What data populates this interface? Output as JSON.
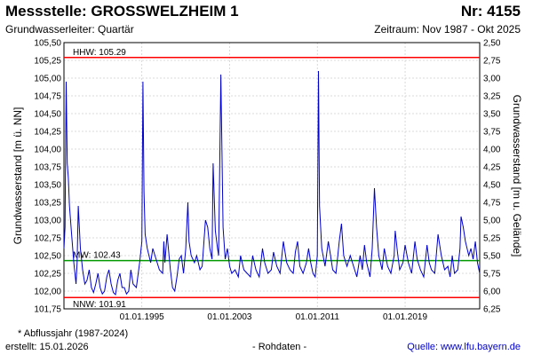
{
  "header": {
    "title": "Messstelle: GROSSWELZHEIM 1",
    "number": "Nr: 4155",
    "aquifer": "Grundwasserleiter: Quartär",
    "period": "Zeitraum: Nov 1987 - Okt 2025"
  },
  "footer": {
    "footnote": "* Abflussjahr (1987-2024)",
    "created": "erstellt:  15.01.2026",
    "rawdata": "- Rohdaten -",
    "source": "Quelle: www.lfu.bayern.de"
  },
  "colors": {
    "series": "#0000cc",
    "hhw_line": "#ff0000",
    "nnw_line": "#ff0000",
    "mw_line": "#009900",
    "grid": "#d0d0d0"
  },
  "chart_data": {
    "type": "line",
    "ylabel": "Grundwasserstand [m ü. NN]",
    "y2label": "Grundwasserstand [m u. Gelände]",
    "ylim": [
      101.75,
      105.5
    ],
    "y_ticks": [
      "101,75",
      "102,00",
      "102,25",
      "102,50",
      "102,75",
      "103,00",
      "103,25",
      "103,50",
      "103,75",
      "104,00",
      "104,25",
      "104,50",
      "104,75",
      "105,00",
      "105,25",
      "105,50"
    ],
    "y2_ticks": [
      "2,50",
      "2,75",
      "3,00",
      "3,25",
      "3,50",
      "3,75",
      "4,00",
      "4,25",
      "4,50",
      "4,75",
      "5,00",
      "5,25",
      "5,50",
      "5,75",
      "6,00",
      "6,25"
    ],
    "x_ticks": [
      "01.01.1995",
      "01.01.2003",
      "01.01.2011",
      "01.01.2019"
    ],
    "xlim": [
      1987.9,
      2025.8
    ],
    "grid": true,
    "reference_lines": [
      {
        "label": "HHW: 105.29",
        "value": 105.29
      },
      {
        "label": "MW: 102.43",
        "value": 102.43
      },
      {
        "label": "NNW: 101.91",
        "value": 101.91
      }
    ],
    "series": [
      {
        "x": [
          1987.9,
          1988.0,
          1988.1,
          1988.2,
          1988.3,
          1988.4,
          1988.6,
          1988.8,
          1989.0,
          1989.1,
          1989.2,
          1989.4,
          1989.6,
          1989.8,
          1990.0,
          1990.2,
          1990.4,
          1990.6,
          1990.8,
          1991.0,
          1991.2,
          1991.4,
          1991.6,
          1991.8,
          1992.0,
          1992.2,
          1992.4,
          1992.6,
          1992.8,
          1993.0,
          1993.2,
          1993.4,
          1993.6,
          1993.8,
          1994.0,
          1994.2,
          1994.5,
          1994.8,
          1995.0,
          1995.1,
          1995.2,
          1995.3,
          1995.5,
          1995.8,
          1996.0,
          1996.3,
          1996.6,
          1996.9,
          1997.0,
          1997.1,
          1997.3,
          1997.6,
          1997.8,
          1998.0,
          1998.2,
          1998.4,
          1998.6,
          1998.8,
          1999.0,
          1999.2,
          1999.3,
          1999.5,
          1999.8,
          2000.0,
          2000.3,
          2000.5,
          2000.8,
          2001.0,
          2001.2,
          2001.4,
          2001.5,
          2001.7,
          2001.9,
          2002.0,
          2002.2,
          2002.4,
          2002.6,
          2002.8,
          2003.0,
          2003.2,
          2003.5,
          2003.8,
          2004.0,
          2004.3,
          2004.6,
          2004.9,
          2005.1,
          2005.4,
          2005.7,
          2006.0,
          2006.2,
          2006.5,
          2006.8,
          2007.0,
          2007.3,
          2007.6,
          2007.9,
          2008.2,
          2008.5,
          2008.8,
          2009.0,
          2009.2,
          2009.4,
          2009.7,
          2010.0,
          2010.2,
          2010.4,
          2010.6,
          2010.8,
          2011.0,
          2011.1,
          2011.2,
          2011.4,
          2011.7,
          2012.0,
          2012.2,
          2012.4,
          2012.7,
          2013.0,
          2013.2,
          2013.4,
          2013.7,
          2014.0,
          2014.3,
          2014.6,
          2014.9,
          2015.1,
          2015.3,
          2015.5,
          2015.8,
          2016.0,
          2016.2,
          2016.4,
          2016.6,
          2016.9,
          2017.1,
          2017.4,
          2017.7,
          2018.0,
          2018.1,
          2018.3,
          2018.5,
          2018.8,
          2019.0,
          2019.3,
          2019.6,
          2019.9,
          2020.1,
          2020.4,
          2020.7,
          2021.0,
          2021.2,
          2021.4,
          2021.7,
          2022.0,
          2022.3,
          2022.6,
          2022.9,
          2023.1,
          2023.3,
          2023.5,
          2023.8,
          2024.0,
          2024.1,
          2024.3,
          2024.5,
          2024.8,
          2025.0,
          2025.2,
          2025.4,
          2025.6,
          2025.8
        ],
        "y": [
          102.6,
          102.9,
          104.95,
          103.8,
          103.6,
          103.2,
          102.8,
          102.4,
          102.1,
          102.4,
          103.2,
          102.6,
          102.3,
          102.1,
          102.15,
          102.3,
          102.05,
          101.98,
          102.1,
          102.25,
          102.05,
          101.96,
          102.0,
          102.2,
          102.3,
          102.1,
          101.98,
          101.95,
          102.15,
          102.25,
          102.05,
          102.05,
          101.96,
          102.0,
          102.3,
          102.1,
          102.05,
          102.4,
          102.7,
          104.95,
          103.4,
          102.8,
          102.6,
          102.4,
          102.6,
          102.45,
          102.3,
          102.25,
          102.7,
          102.4,
          102.8,
          102.3,
          102.05,
          102.0,
          102.2,
          102.45,
          102.5,
          102.25,
          102.6,
          103.25,
          102.7,
          102.5,
          102.4,
          102.5,
          102.3,
          102.35,
          103.0,
          102.9,
          102.6,
          102.45,
          103.8,
          102.85,
          102.6,
          102.5,
          105.05,
          102.9,
          102.45,
          102.6,
          102.35,
          102.25,
          102.3,
          102.2,
          102.5,
          102.3,
          102.25,
          102.2,
          102.5,
          102.3,
          102.2,
          102.6,
          102.4,
          102.25,
          102.3,
          102.55,
          102.35,
          102.25,
          102.7,
          102.4,
          102.3,
          102.25,
          102.55,
          102.7,
          102.35,
          102.25,
          102.4,
          102.6,
          102.4,
          102.25,
          102.2,
          102.5,
          105.1,
          103.2,
          102.6,
          102.35,
          102.7,
          102.5,
          102.3,
          102.25,
          102.7,
          102.95,
          102.5,
          102.35,
          102.5,
          102.35,
          102.2,
          102.5,
          102.3,
          102.65,
          102.4,
          102.2,
          102.6,
          103.45,
          102.9,
          102.5,
          102.3,
          102.6,
          102.35,
          102.25,
          102.5,
          102.85,
          102.55,
          102.3,
          102.4,
          102.65,
          102.4,
          102.25,
          102.7,
          102.45,
          102.3,
          102.2,
          102.65,
          102.4,
          102.3,
          102.25,
          102.8,
          102.5,
          102.3,
          102.35,
          102.2,
          102.5,
          102.25,
          102.3,
          102.6,
          103.05,
          102.9,
          102.7,
          102.5,
          102.6,
          102.45,
          102.7,
          102.4,
          102.25
        ]
      }
    ]
  }
}
